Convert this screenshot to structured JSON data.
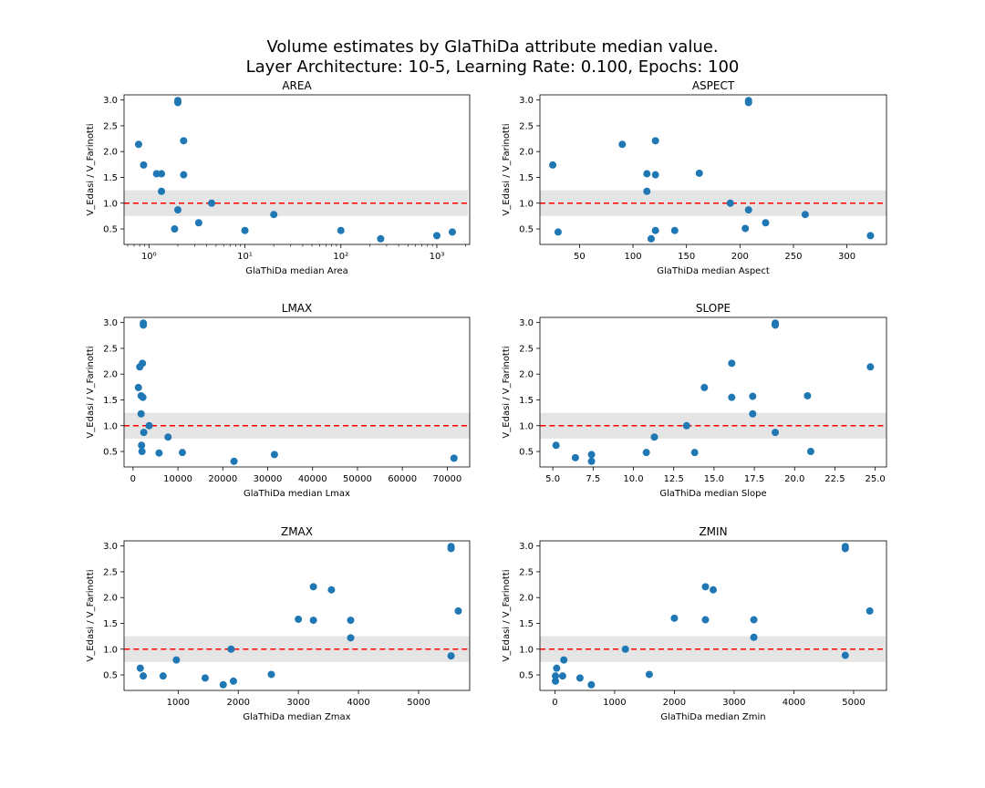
{
  "figure": {
    "title_line1": "Volume estimates by GlaThiDa attribute median value.",
    "title_line2": "Layer Architecture: 10-5, Learning Rate: 0.100, Epochs: 100",
    "colors": {
      "marker": "#1f77b4",
      "refline": "#ff0000",
      "band": "#e5e5e5"
    },
    "reference_value": 1.0,
    "band_range": [
      0.75,
      1.25
    ]
  },
  "chart_data": [
    {
      "type": "scatter",
      "title": "AREA",
      "xlabel": "GlaThiDa median Area",
      "ylabel": "V_Edasi / V_Farinotti",
      "xscale": "log",
      "xlim": [
        0.55,
        2200
      ],
      "ylim": [
        0.2,
        3.1
      ],
      "xticks": [
        1,
        10,
        100,
        1000
      ],
      "xtick_labels": [
        "10⁰",
        "10¹",
        "10²",
        "10³"
      ],
      "yticks": [
        0.5,
        1.0,
        1.5,
        2.0,
        2.5,
        3.0
      ],
      "ytick_labels": [
        "0.5",
        "1.0",
        "1.5",
        "2.0",
        "2.5",
        "3.0"
      ],
      "points": [
        [
          0.78,
          2.14
        ],
        [
          0.88,
          1.74
        ],
        [
          1.2,
          1.57
        ],
        [
          1.35,
          1.57
        ],
        [
          1.35,
          1.23
        ],
        [
          1.85,
          0.5
        ],
        [
          2.0,
          2.99
        ],
        [
          2.0,
          2.95
        ],
        [
          2.0,
          0.87
        ],
        [
          2.3,
          2.21
        ],
        [
          2.3,
          1.55
        ],
        [
          3.3,
          0.62
        ],
        [
          4.5,
          1.0
        ],
        [
          10.0,
          0.47
        ],
        [
          20.0,
          0.78
        ],
        [
          100.0,
          0.47
        ],
        [
          260.0,
          0.31
        ],
        [
          1000.0,
          0.37
        ],
        [
          1450.0,
          0.44
        ]
      ]
    },
    {
      "type": "scatter",
      "title": "ASPECT",
      "xlabel": "GlaThiDa median Aspect",
      "ylabel": "V_Edasi / V_Farinotti",
      "xscale": "linear",
      "xlim": [
        13,
        337
      ],
      "ylim": [
        0.2,
        3.1
      ],
      "xticks": [
        50,
        100,
        150,
        200,
        250,
        300
      ],
      "xtick_labels": [
        "50",
        "100",
        "150",
        "200",
        "250",
        "300"
      ],
      "yticks": [
        0.5,
        1.0,
        1.5,
        2.0,
        2.5,
        3.0
      ],
      "ytick_labels": [
        "0.5",
        "1.0",
        "1.5",
        "2.0",
        "2.5",
        "3.0"
      ],
      "points": [
        [
          25,
          1.74
        ],
        [
          30,
          0.44
        ],
        [
          90,
          2.14
        ],
        [
          113,
          1.57
        ],
        [
          113,
          1.23
        ],
        [
          117,
          0.31
        ],
        [
          121,
          2.21
        ],
        [
          121,
          1.55
        ],
        [
          121,
          0.47
        ],
        [
          139,
          0.47
        ],
        [
          162,
          1.58
        ],
        [
          191,
          1.0
        ],
        [
          205,
          0.51
        ],
        [
          208,
          2.99
        ],
        [
          208,
          2.95
        ],
        [
          208,
          0.87
        ],
        [
          224,
          0.62
        ],
        [
          261,
          0.78
        ],
        [
          322,
          0.37
        ]
      ]
    },
    {
      "type": "scatter",
      "title": "LMAX",
      "xlabel": "GlaThiDa median Lmax",
      "ylabel": "V_Edasi / V_Farinotti",
      "xscale": "linear",
      "xlim": [
        -2000,
        75000
      ],
      "ylim": [
        0.2,
        3.1
      ],
      "xticks": [
        0,
        10000,
        20000,
        30000,
        40000,
        50000,
        60000,
        70000
      ],
      "xtick_labels": [
        "0",
        "10000",
        "20000",
        "30000",
        "40000",
        "50000",
        "60000",
        "70000"
      ],
      "yticks": [
        0.5,
        1.0,
        1.5,
        2.0,
        2.5,
        3.0
      ],
      "ytick_labels": [
        "0.5",
        "1.0",
        "1.5",
        "2.0",
        "2.5",
        "3.0"
      ],
      "points": [
        [
          1200,
          1.74
        ],
        [
          1500,
          2.14
        ],
        [
          1800,
          1.23
        ],
        [
          1800,
          1.58
        ],
        [
          1900,
          0.62
        ],
        [
          2000,
          0.5
        ],
        [
          2100,
          2.21
        ],
        [
          2200,
          1.55
        ],
        [
          2300,
          2.99
        ],
        [
          2300,
          2.95
        ],
        [
          2400,
          0.87
        ],
        [
          3600,
          1.0
        ],
        [
          5800,
          0.47
        ],
        [
          7800,
          0.78
        ],
        [
          11000,
          0.48
        ],
        [
          22500,
          0.31
        ],
        [
          31500,
          0.44
        ],
        [
          71500,
          0.37
        ]
      ]
    },
    {
      "type": "scatter",
      "title": "SLOPE",
      "xlabel": "GlaThiDa median Slope",
      "ylabel": "V_Edasi / V_Farinotti",
      "xscale": "linear",
      "xlim": [
        4.2,
        25.7
      ],
      "ylim": [
        0.2,
        3.1
      ],
      "xticks": [
        5.0,
        7.5,
        10.0,
        12.5,
        15.0,
        17.5,
        20.0,
        22.5,
        25.0
      ],
      "xtick_labels": [
        "5.0",
        "7.5",
        "10.0",
        "12.5",
        "15.0",
        "17.5",
        "20.0",
        "22.5",
        "25.0"
      ],
      "yticks": [
        0.5,
        1.0,
        1.5,
        2.0,
        2.5,
        3.0
      ],
      "ytick_labels": [
        "0.5",
        "1.0",
        "1.5",
        "2.0",
        "2.5",
        "3.0"
      ],
      "points": [
        [
          5.2,
          0.62
        ],
        [
          6.4,
          0.38
        ],
        [
          7.4,
          0.44
        ],
        [
          7.4,
          0.31
        ],
        [
          10.8,
          0.48
        ],
        [
          11.3,
          0.78
        ],
        [
          13.3,
          1.0
        ],
        [
          13.8,
          0.48
        ],
        [
          14.4,
          1.74
        ],
        [
          16.1,
          2.21
        ],
        [
          16.1,
          1.55
        ],
        [
          17.4,
          1.57
        ],
        [
          17.4,
          1.23
        ],
        [
          18.8,
          2.99
        ],
        [
          18.8,
          2.95
        ],
        [
          18.8,
          0.87
        ],
        [
          20.8,
          1.58
        ],
        [
          21.0,
          0.5
        ],
        [
          24.7,
          2.14
        ]
      ]
    },
    {
      "type": "scatter",
      "title": "ZMAX",
      "xlabel": "GlaThiDa median Zmax",
      "ylabel": "V_Edasi / V_Farinotti",
      "xscale": "linear",
      "xlim": [
        100,
        5850
      ],
      "ylim": [
        0.2,
        3.1
      ],
      "xticks": [
        1000,
        2000,
        3000,
        4000,
        5000
      ],
      "xtick_labels": [
        "1000",
        "2000",
        "3000",
        "4000",
        "5000"
      ],
      "yticks": [
        0.5,
        1.0,
        1.5,
        2.0,
        2.5,
        3.0
      ],
      "ytick_labels": [
        "0.5",
        "1.0",
        "1.5",
        "2.0",
        "2.5",
        "3.0"
      ],
      "points": [
        [
          370,
          0.63
        ],
        [
          420,
          0.48
        ],
        [
          750,
          0.48
        ],
        [
          970,
          0.79
        ],
        [
          1450,
          0.44
        ],
        [
          1750,
          0.31
        ],
        [
          1880,
          1.0
        ],
        [
          1920,
          0.38
        ],
        [
          2550,
          0.51
        ],
        [
          3000,
          1.58
        ],
        [
          3250,
          2.21
        ],
        [
          3250,
          1.56
        ],
        [
          3550,
          2.15
        ],
        [
          3870,
          1.56
        ],
        [
          3870,
          1.22
        ],
        [
          5540,
          2.99
        ],
        [
          5540,
          2.95
        ],
        [
          5540,
          0.87
        ],
        [
          5660,
          1.74
        ]
      ]
    },
    {
      "type": "scatter",
      "title": "ZMIN",
      "xlabel": "GlaThiDa median Zmin",
      "ylabel": "V_Edasi / V_Farinotti",
      "xscale": "linear",
      "xlim": [
        -250,
        5550
      ],
      "ylim": [
        0.2,
        3.1
      ],
      "xticks": [
        0,
        1000,
        2000,
        3000,
        4000,
        5000
      ],
      "xtick_labels": [
        "0",
        "1000",
        "2000",
        "3000",
        "4000",
        "5000"
      ],
      "yticks": [
        0.5,
        1.0,
        1.5,
        2.0,
        2.5,
        3.0
      ],
      "ytick_labels": [
        "0.5",
        "1.0",
        "1.5",
        "2.0",
        "2.5",
        "3.0"
      ],
      "points": [
        [
          10,
          0.38
        ],
        [
          10,
          0.48
        ],
        [
          30,
          0.63
        ],
        [
          130,
          0.48
        ],
        [
          150,
          0.79
        ],
        [
          420,
          0.44
        ],
        [
          610,
          0.31
        ],
        [
          1180,
          1.0
        ],
        [
          1580,
          0.51
        ],
        [
          2000,
          1.6
        ],
        [
          2520,
          2.21
        ],
        [
          2520,
          1.57
        ],
        [
          2650,
          2.15
        ],
        [
          3330,
          1.57
        ],
        [
          3330,
          1.23
        ],
        [
          4860,
          2.99
        ],
        [
          4860,
          2.95
        ],
        [
          4860,
          0.88
        ],
        [
          5270,
          1.74
        ]
      ]
    }
  ]
}
